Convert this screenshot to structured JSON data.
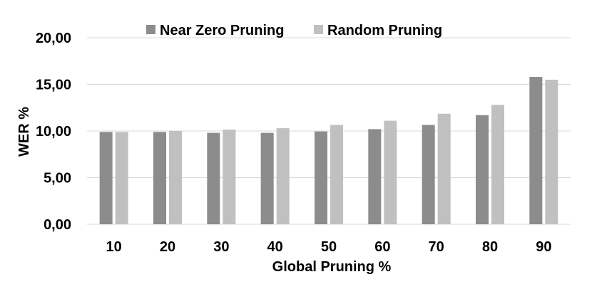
{
  "chart_data": {
    "type": "bar",
    "xlabel": "Global Pruning %",
    "ylabel": "WER %",
    "categories": [
      "10",
      "20",
      "30",
      "40",
      "50",
      "60",
      "70",
      "80",
      "90"
    ],
    "series": [
      {
        "name": "Near Zero Pruning",
        "color": "#8c8c8c",
        "values": [
          9.9,
          9.9,
          9.8,
          9.8,
          9.95,
          10.2,
          10.65,
          11.7,
          15.8
        ]
      },
      {
        "name": "Random Pruning",
        "color": "#c0c0c0",
        "values": [
          9.9,
          10.0,
          10.15,
          10.3,
          10.65,
          11.1,
          11.85,
          12.8,
          15.5
        ]
      }
    ],
    "ylim": [
      0,
      20
    ],
    "yticks": [
      "0,00",
      "5,00",
      "10,00",
      "15,00",
      "20,00"
    ],
    "ytick_values": [
      0,
      5,
      10,
      15,
      20
    ],
    "grid": true,
    "legend": "top-center"
  }
}
